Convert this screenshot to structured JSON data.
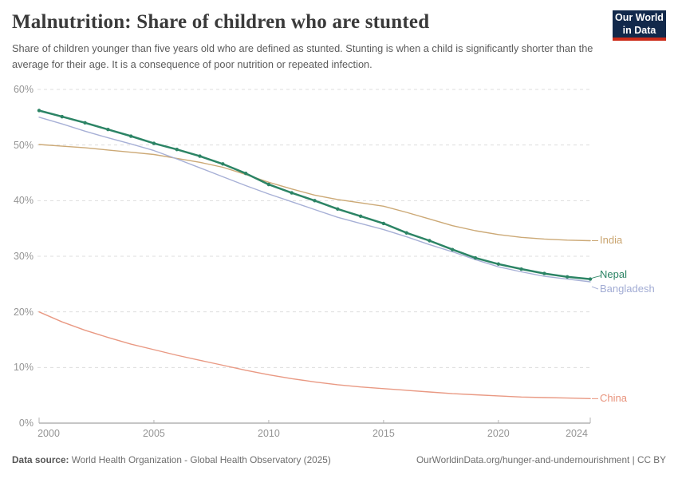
{
  "header": {
    "title": "Malnutrition: Share of children who are stunted",
    "subtitle": "Share of children younger than five years old who are defined as stunted. Stunting is when a child is significantly shorter than the average for their age. It is a consequence of poor nutrition or repeated infection.",
    "logo": {
      "line1": "Our World",
      "line2": "in Data",
      "bg_color": "#12294B",
      "accent_color": "#CC2B19"
    }
  },
  "chart_data": {
    "type": "line",
    "title": "Malnutrition: Share of children who are stunted",
    "xlabel": "",
    "ylabel": "",
    "x": [
      2000,
      2001,
      2002,
      2003,
      2004,
      2005,
      2006,
      2007,
      2008,
      2009,
      2010,
      2011,
      2012,
      2013,
      2014,
      2015,
      2016,
      2017,
      2018,
      2019,
      2020,
      2021,
      2022,
      2023,
      2024
    ],
    "series": [
      {
        "name": "India",
        "color": "#C9A46F",
        "highlight": false,
        "label_dy": 0,
        "values": [
          50.1,
          49.8,
          49.5,
          49.1,
          48.7,
          48.3,
          47.6,
          46.9,
          46.0,
          44.7,
          43.3,
          42.1,
          41.0,
          40.2,
          39.6,
          39.0,
          37.9,
          36.7,
          35.5,
          34.6,
          33.9,
          33.4,
          33.1,
          32.9,
          32.8
        ]
      },
      {
        "name": "Nepal",
        "color": "#2C8465",
        "highlight": true,
        "label_dy": -6,
        "values": [
          56.2,
          55.1,
          54.0,
          52.8,
          51.6,
          50.3,
          49.2,
          48.0,
          46.6,
          44.9,
          42.9,
          41.4,
          40.0,
          38.5,
          37.2,
          35.9,
          34.2,
          32.8,
          31.2,
          29.7,
          28.6,
          27.7,
          26.9,
          26.3,
          25.9
        ]
      },
      {
        "name": "Bangladesh",
        "color": "#A2ACD4",
        "highlight": false,
        "label_dy": 9,
        "values": [
          55.0,
          53.8,
          52.5,
          51.3,
          50.2,
          49.0,
          47.5,
          45.9,
          44.3,
          42.7,
          41.2,
          39.8,
          38.4,
          37.0,
          35.9,
          34.8,
          33.5,
          32.1,
          30.8,
          29.4,
          28.1,
          27.2,
          26.4,
          25.9,
          25.4
        ]
      },
      {
        "name": "China",
        "color": "#E8937C",
        "highlight": false,
        "label_dy": 0,
        "values": [
          20.0,
          18.2,
          16.7,
          15.4,
          14.2,
          13.2,
          12.2,
          11.3,
          10.4,
          9.5,
          8.7,
          8.0,
          7.4,
          6.9,
          6.5,
          6.2,
          5.9,
          5.6,
          5.3,
          5.1,
          4.9,
          4.7,
          4.6,
          4.5,
          4.4
        ]
      }
    ],
    "ylim": [
      0,
      60
    ],
    "yticks": [
      0,
      10,
      20,
      30,
      40,
      50,
      60
    ],
    "ytick_suffix": "%",
    "xticks": [
      2000,
      2005,
      2010,
      2015,
      2020,
      2024
    ],
    "grid": "horizontal-dashed",
    "grid_color": "#dddddd",
    "axis_color": "#8c8c8c",
    "tick_label_color": "#949494",
    "legend_position": "right-end-labels"
  },
  "footer": {
    "datasource_label": "Data source:",
    "datasource_text": " World Health Organization - Global Health Observatory (2025)",
    "link_text": "OurWorldinData.org/hunger-and-undernourishment | CC BY"
  }
}
